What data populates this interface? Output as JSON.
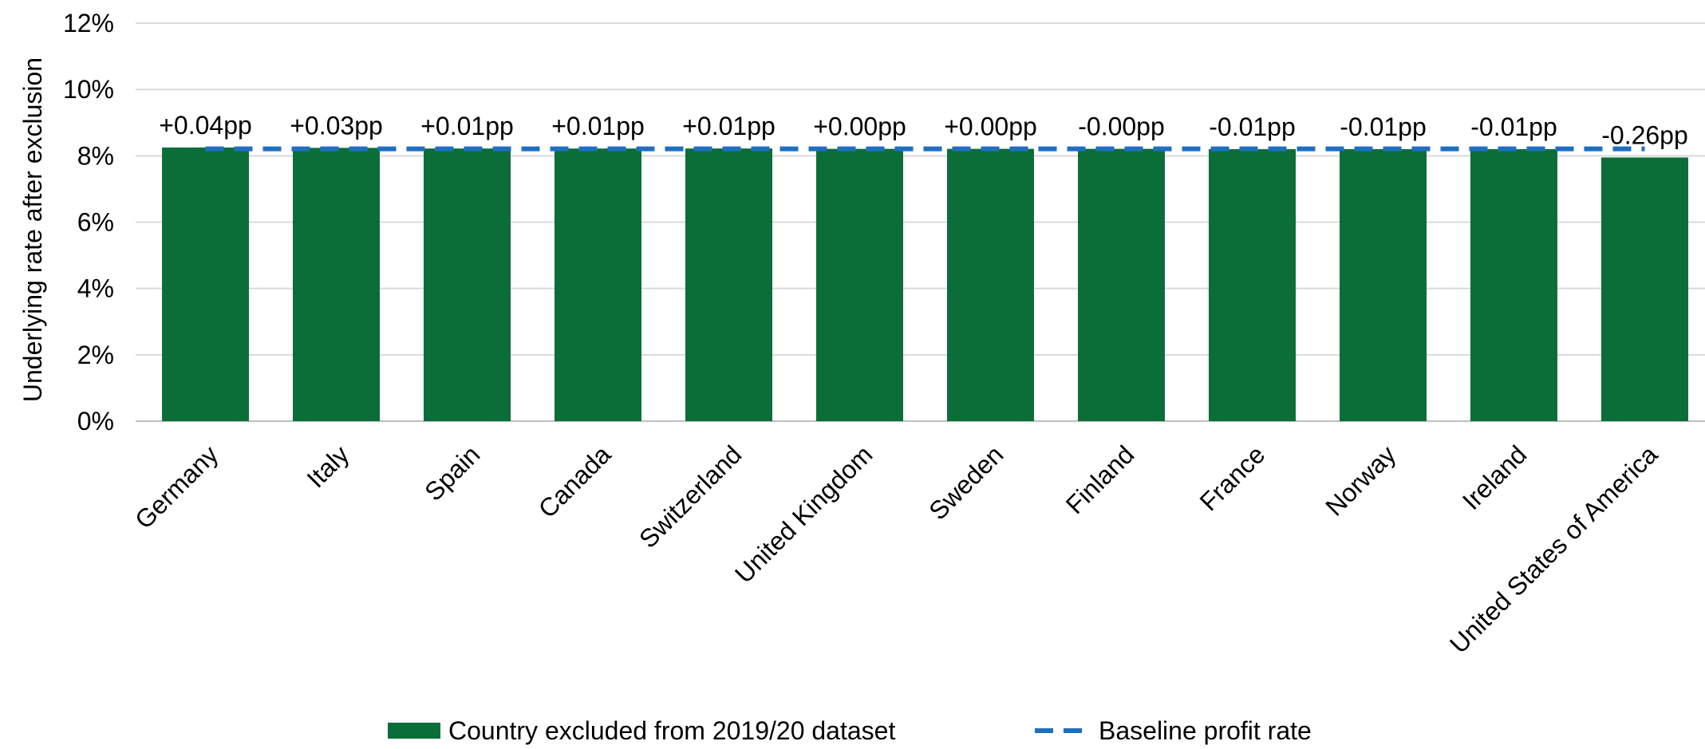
{
  "chart_data": {
    "type": "bar",
    "categories": [
      "Germany",
      "Italy",
      "Spain",
      "Canada",
      "Switzerland",
      "United Kingdom",
      "Sweden",
      "Finland",
      "France",
      "Norway",
      "Ireland",
      "United States of America"
    ],
    "series": [
      {
        "name": "Country excluded from 2019/20 dataset",
        "values": [
          8.25,
          8.24,
          8.22,
          8.22,
          8.22,
          8.21,
          8.21,
          8.21,
          8.2,
          8.2,
          8.2,
          7.95
        ],
        "color": "#0b6e38"
      }
    ],
    "data_labels": [
      "+0.04pp",
      "+0.03pp",
      "+0.01pp",
      "+0.01pp",
      "+0.01pp",
      "+0.00pp",
      "+0.00pp",
      "-0.00pp",
      "-0.01pp",
      "-0.01pp",
      "-0.01pp",
      "-0.26pp"
    ],
    "baseline": {
      "name": "Baseline profit rate",
      "value": 8.21,
      "color": "#1f6fc1",
      "style": "dashed"
    },
    "ylabel": "Underlying rate after exclusion",
    "xlabel": "",
    "ylim": [
      0,
      12
    ],
    "yticks": [
      0,
      2,
      4,
      6,
      8,
      10,
      12
    ],
    "ytick_labels": [
      "0%",
      "2%",
      "4%",
      "6%",
      "8%",
      "10%",
      "12%"
    ],
    "grid": true,
    "legend_position": "bottom"
  }
}
